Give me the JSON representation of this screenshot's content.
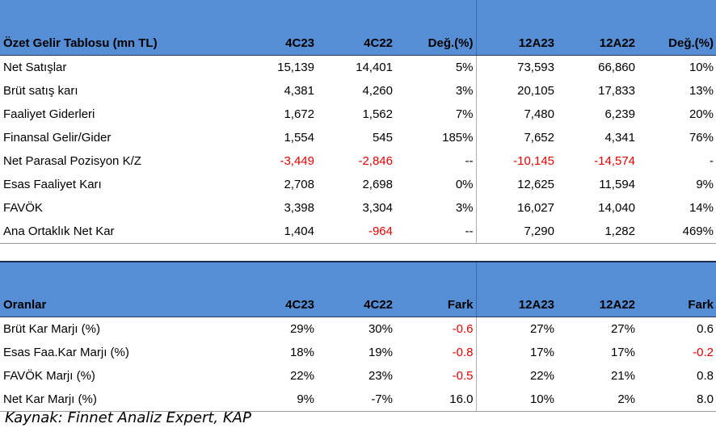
{
  "income": {
    "header": [
      "Özet Gelir Tablosu (mn TL)",
      "4C23",
      "4C22",
      "Değ.(%)",
      "12A23",
      "12A22",
      "Değ.(%)"
    ],
    "rows": [
      {
        "label": "Net Satışlar",
        "c": [
          "15,139",
          "14,401",
          "5%",
          "73,593",
          "66,860",
          "10%"
        ],
        "red": [
          false,
          false,
          false,
          false,
          false,
          false
        ]
      },
      {
        "label": "Brüt satış karı",
        "c": [
          "4,381",
          "4,260",
          "3%",
          "20,105",
          "17,833",
          "13%"
        ],
        "red": [
          false,
          false,
          false,
          false,
          false,
          false
        ]
      },
      {
        "label": "Faaliyet Giderleri",
        "c": [
          "1,672",
          "1,562",
          "7%",
          "7,480",
          "6,239",
          "20%"
        ],
        "red": [
          false,
          false,
          false,
          false,
          false,
          false
        ]
      },
      {
        "label": "Finansal Gelir/Gider",
        "c": [
          "1,554",
          "545",
          "185%",
          "7,652",
          "4,341",
          "76%"
        ],
        "red": [
          false,
          false,
          false,
          false,
          false,
          false
        ]
      },
      {
        "label": "Net Parasal Pozisyon K/Z",
        "c": [
          "-3,449",
          "-2,846",
          "--",
          "-10,145",
          "-14,574",
          "-"
        ],
        "red": [
          true,
          true,
          false,
          true,
          true,
          false
        ]
      },
      {
        "label": "Esas Faaliyet Karı",
        "c": [
          "2,708",
          "2,698",
          "0%",
          "12,625",
          "11,594",
          "9%"
        ],
        "red": [
          false,
          false,
          false,
          false,
          false,
          false
        ]
      },
      {
        "label": "FAVÖK",
        "c": [
          "3,398",
          "3,304",
          "3%",
          "16,027",
          "14,040",
          "14%"
        ],
        "red": [
          false,
          false,
          false,
          false,
          false,
          false
        ]
      },
      {
        "label": "Ana Ortaklık Net Kar",
        "c": [
          "1,404",
          "-964",
          "--",
          "7,290",
          "1,282",
          "469%"
        ],
        "red": [
          false,
          true,
          false,
          false,
          false,
          false
        ]
      }
    ]
  },
  "ratios": {
    "header": [
      "Oranlar",
      "4C23",
      "4C22",
      "Fark",
      "12A23",
      "12A22",
      "Fark"
    ],
    "rows": [
      {
        "label": "Brüt Kar Marjı (%)",
        "c": [
          "29%",
          "30%",
          "-0.6",
          "27%",
          "27%",
          "0.6"
        ],
        "red": [
          false,
          false,
          true,
          false,
          false,
          false
        ]
      },
      {
        "label": "Esas Faa.Kar Marjı (%)",
        "c": [
          "18%",
          "19%",
          "-0.8",
          "17%",
          "17%",
          "-0.2"
        ],
        "red": [
          false,
          false,
          true,
          false,
          false,
          true
        ]
      },
      {
        "label": "FAVÖK Marjı (%)",
        "c": [
          "22%",
          "23%",
          "-0.5",
          "22%",
          "21%",
          "0.8"
        ],
        "red": [
          false,
          false,
          true,
          false,
          false,
          false
        ]
      },
      {
        "label": "Net Kar Marjı (%)",
        "c": [
          "9%",
          "-7%",
          "16.0",
          "10%",
          "2%",
          "8.0"
        ],
        "red": [
          false,
          false,
          false,
          false,
          false,
          false
        ]
      }
    ]
  },
  "caption": "Kaynak: Finnet Analiz Expert, KAP",
  "colors": {
    "header_bg": "#558ed5",
    "negative": "#e60000"
  }
}
